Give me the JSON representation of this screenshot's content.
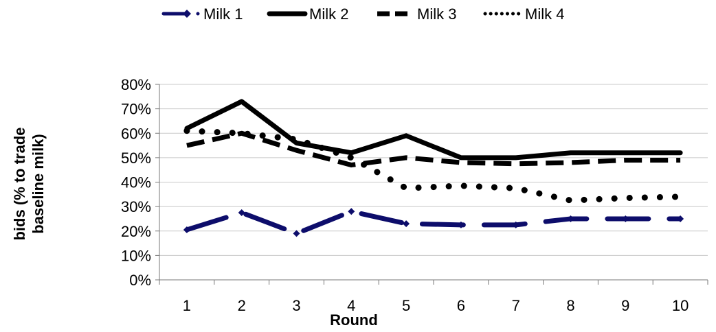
{
  "chart_data": {
    "type": "line",
    "title": "",
    "xlabel": "Round",
    "ylabel_lines": [
      "bids (% to trade",
      "baseline milk)"
    ],
    "categories": [
      "1",
      "2",
      "3",
      "4",
      "5",
      "6",
      "7",
      "8",
      "9",
      "10"
    ],
    "ylim": [
      0,
      80
    ],
    "yticks": [
      "0%",
      "10%",
      "20%",
      "30%",
      "40%",
      "50%",
      "60%",
      "70%",
      "80%"
    ],
    "grid": "horizontal",
    "legend_position": "top",
    "series": [
      {
        "name": "Milk 1",
        "color": "#0d0d6b",
        "style": "dash-dot-marker",
        "values": [
          20.5,
          27.5,
          19,
          28,
          23,
          22.5,
          22.5,
          25,
          25,
          25
        ]
      },
      {
        "name": "Milk 2",
        "color": "#000000",
        "style": "solid",
        "values": [
          62,
          73,
          56,
          52,
          59,
          50,
          50,
          52,
          52,
          52
        ]
      },
      {
        "name": "Milk 3",
        "color": "#000000",
        "style": "dashed",
        "values": [
          55,
          60,
          53,
          47,
          50,
          48,
          47.5,
          48,
          49,
          49
        ]
      },
      {
        "name": "Milk 4",
        "color": "#000000",
        "style": "dotted",
        "values": [
          61,
          60,
          57.5,
          50,
          37.5,
          38.5,
          37.5,
          32.5,
          33.5,
          34
        ]
      }
    ]
  }
}
